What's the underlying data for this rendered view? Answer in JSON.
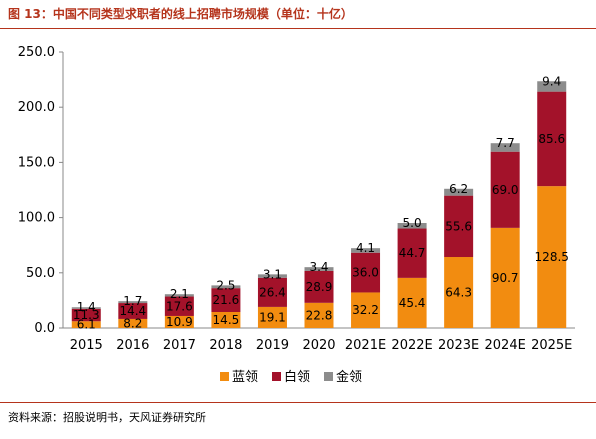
{
  "chart_data": {
    "type": "bar",
    "stacked": true,
    "title": "图 13：中国不同类型求职者的线上招聘市场规模（单位：十亿）",
    "categories": [
      "2015",
      "2016",
      "2017",
      "2018",
      "2019",
      "2020",
      "2021E",
      "2022E",
      "2023E",
      "2024E",
      "2025E"
    ],
    "series": [
      {
        "name": "蓝领",
        "color": "#f28c10",
        "values": [
          6.1,
          8.2,
          10.9,
          14.5,
          19.1,
          22.8,
          32.2,
          45.4,
          64.3,
          90.7,
          128.5
        ]
      },
      {
        "name": "白领",
        "color": "#a3122a",
        "values": [
          11.3,
          14.4,
          17.6,
          21.6,
          26.4,
          28.9,
          36.0,
          44.7,
          55.6,
          69.0,
          85.6
        ]
      },
      {
        "name": "金领",
        "color": "#8c8c8c",
        "values": [
          1.4,
          1.7,
          2.1,
          2.5,
          3.1,
          3.4,
          4.1,
          5.0,
          6.2,
          7.7,
          9.4
        ]
      }
    ],
    "y_ticks": [
      "0.0",
      "50.0",
      "100.0",
      "150.0",
      "200.0",
      "250.0"
    ],
    "ylim": [
      0,
      250
    ],
    "grid": false,
    "legend_position": "bottom",
    "source": "资料来源：招股说明书，天风证券研究所"
  }
}
